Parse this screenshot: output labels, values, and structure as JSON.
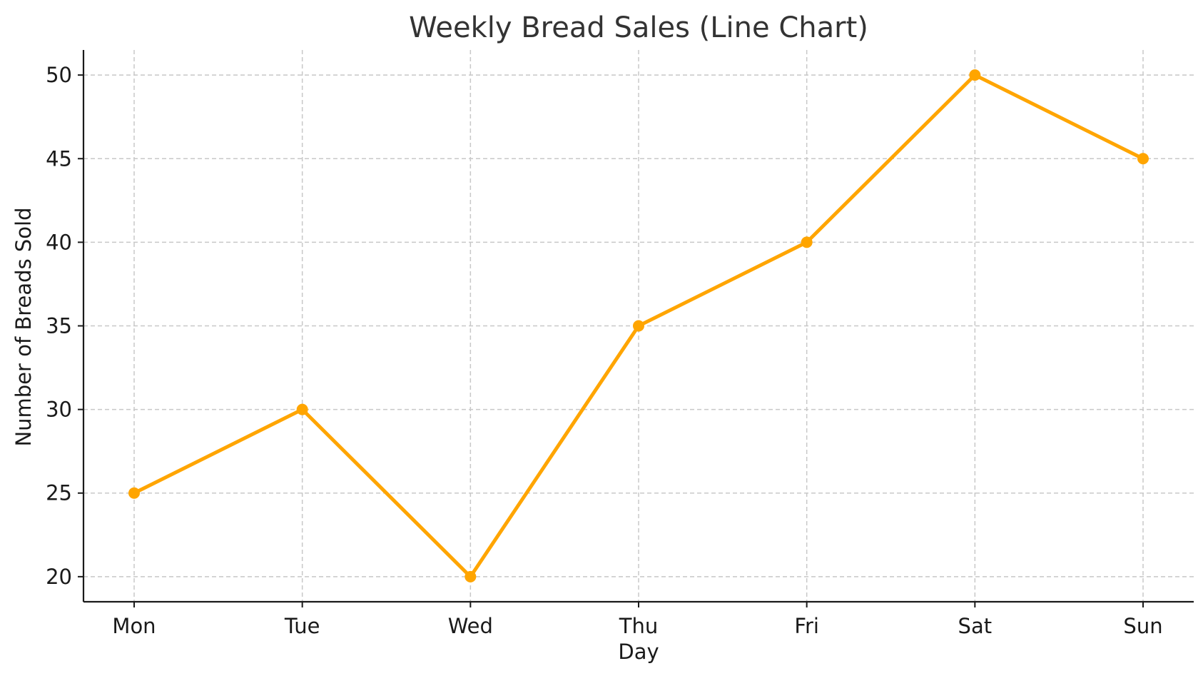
{
  "chart_data": {
    "type": "line",
    "title": "Weekly Bread Sales (Line Chart)",
    "xlabel": "Day",
    "ylabel": "Number of Breads Sold",
    "categories": [
      "Mon",
      "Tue",
      "Wed",
      "Thu",
      "Fri",
      "Sat",
      "Sun"
    ],
    "series": [
      {
        "values": [
          25,
          30,
          20,
          35,
          40,
          50,
          45
        ],
        "color": "#FFA500",
        "marker": "circle"
      }
    ],
    "yticks": [
      20,
      25,
      30,
      35,
      40,
      45,
      50
    ],
    "ylim": [
      18.5,
      51.5
    ],
    "grid": true,
    "legend": "none"
  }
}
